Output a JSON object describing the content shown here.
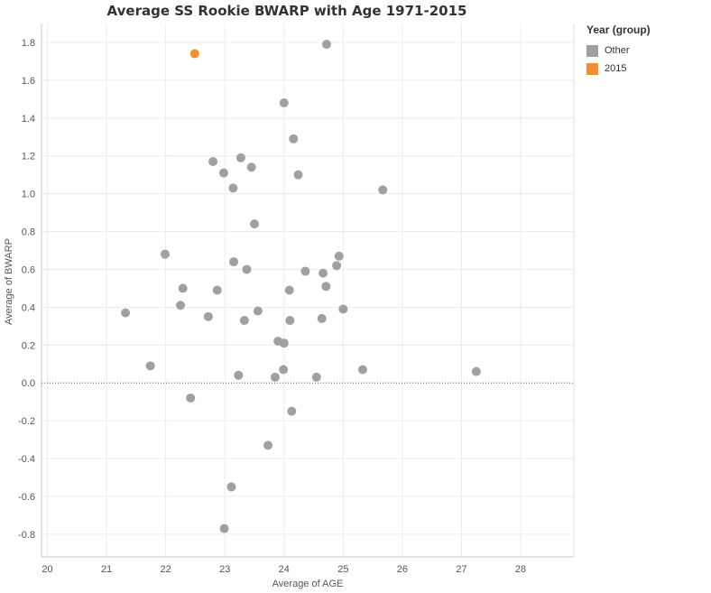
{
  "chart_data": {
    "type": "scatter",
    "title": "Average SS Rookie BWARP with Age 1971-2015",
    "xlabel": "Average of AGE",
    "ylabel": "Average of BWARP",
    "xlim": [
      19.9,
      28.9
    ],
    "ylim": [
      -0.92,
      1.9
    ],
    "x_ticks": [
      "20",
      "21",
      "22",
      "23",
      "24",
      "25",
      "26",
      "27",
      "28"
    ],
    "y_ticks": [
      "-0.8",
      "-0.6",
      "-0.4",
      "-0.2",
      "0.0",
      "0.2",
      "0.4",
      "0.6",
      "0.8",
      "1.0",
      "1.2",
      "1.4",
      "1.6",
      "1.8"
    ],
    "x_tick_values": [
      20,
      21,
      22,
      23,
      24,
      25,
      26,
      27,
      28
    ],
    "y_tick_values": [
      -0.8,
      -0.6,
      -0.4,
      -0.2,
      0.0,
      0.2,
      0.4,
      0.6,
      0.8,
      1.0,
      1.2,
      1.4,
      1.6,
      1.8
    ],
    "zero_reference_line": true,
    "grid": true,
    "legend": {
      "title": "Year (group)",
      "placement": "right",
      "entries": [
        {
          "label": "Other",
          "color": "#a0a0a0"
        },
        {
          "label": "2015",
          "color": "#f28e2b"
        }
      ]
    },
    "series": [
      {
        "name": "Other",
        "color": "#a0a0a0",
        "points": [
          [
            21.32,
            0.37
          ],
          [
            21.74,
            0.09
          ],
          [
            21.99,
            0.68
          ],
          [
            22.25,
            0.41
          ],
          [
            22.29,
            0.5
          ],
          [
            22.42,
            -0.08
          ],
          [
            22.72,
            0.35
          ],
          [
            22.8,
            1.17
          ],
          [
            22.87,
            0.49
          ],
          [
            22.98,
            1.11
          ],
          [
            22.99,
            -0.77
          ],
          [
            23.11,
            -0.55
          ],
          [
            23.14,
            1.03
          ],
          [
            23.15,
            0.64
          ],
          [
            23.23,
            0.04
          ],
          [
            23.27,
            1.19
          ],
          [
            23.33,
            0.33
          ],
          [
            23.37,
            0.6
          ],
          [
            23.45,
            1.14
          ],
          [
            23.5,
            0.84
          ],
          [
            23.56,
            0.38
          ],
          [
            23.73,
            -0.33
          ],
          [
            23.85,
            0.03
          ],
          [
            23.9,
            0.22
          ],
          [
            23.99,
            0.07
          ],
          [
            24.0,
            0.21
          ],
          [
            24.0,
            1.48
          ],
          [
            24.09,
            0.49
          ],
          [
            24.1,
            0.33
          ],
          [
            24.13,
            -0.15
          ],
          [
            24.16,
            1.29
          ],
          [
            24.24,
            1.1
          ],
          [
            24.36,
            0.59
          ],
          [
            24.55,
            0.03
          ],
          [
            24.64,
            0.34
          ],
          [
            24.66,
            0.58
          ],
          [
            24.71,
            0.51
          ],
          [
            24.72,
            1.79
          ],
          [
            24.89,
            0.62
          ],
          [
            24.93,
            0.67
          ],
          [
            25.0,
            0.39
          ],
          [
            25.33,
            0.07
          ],
          [
            25.67,
            1.02
          ],
          [
            27.25,
            0.06
          ]
        ]
      },
      {
        "name": "2015",
        "color": "#f28e2b",
        "points": [
          [
            22.49,
            1.74
          ]
        ]
      }
    ]
  }
}
